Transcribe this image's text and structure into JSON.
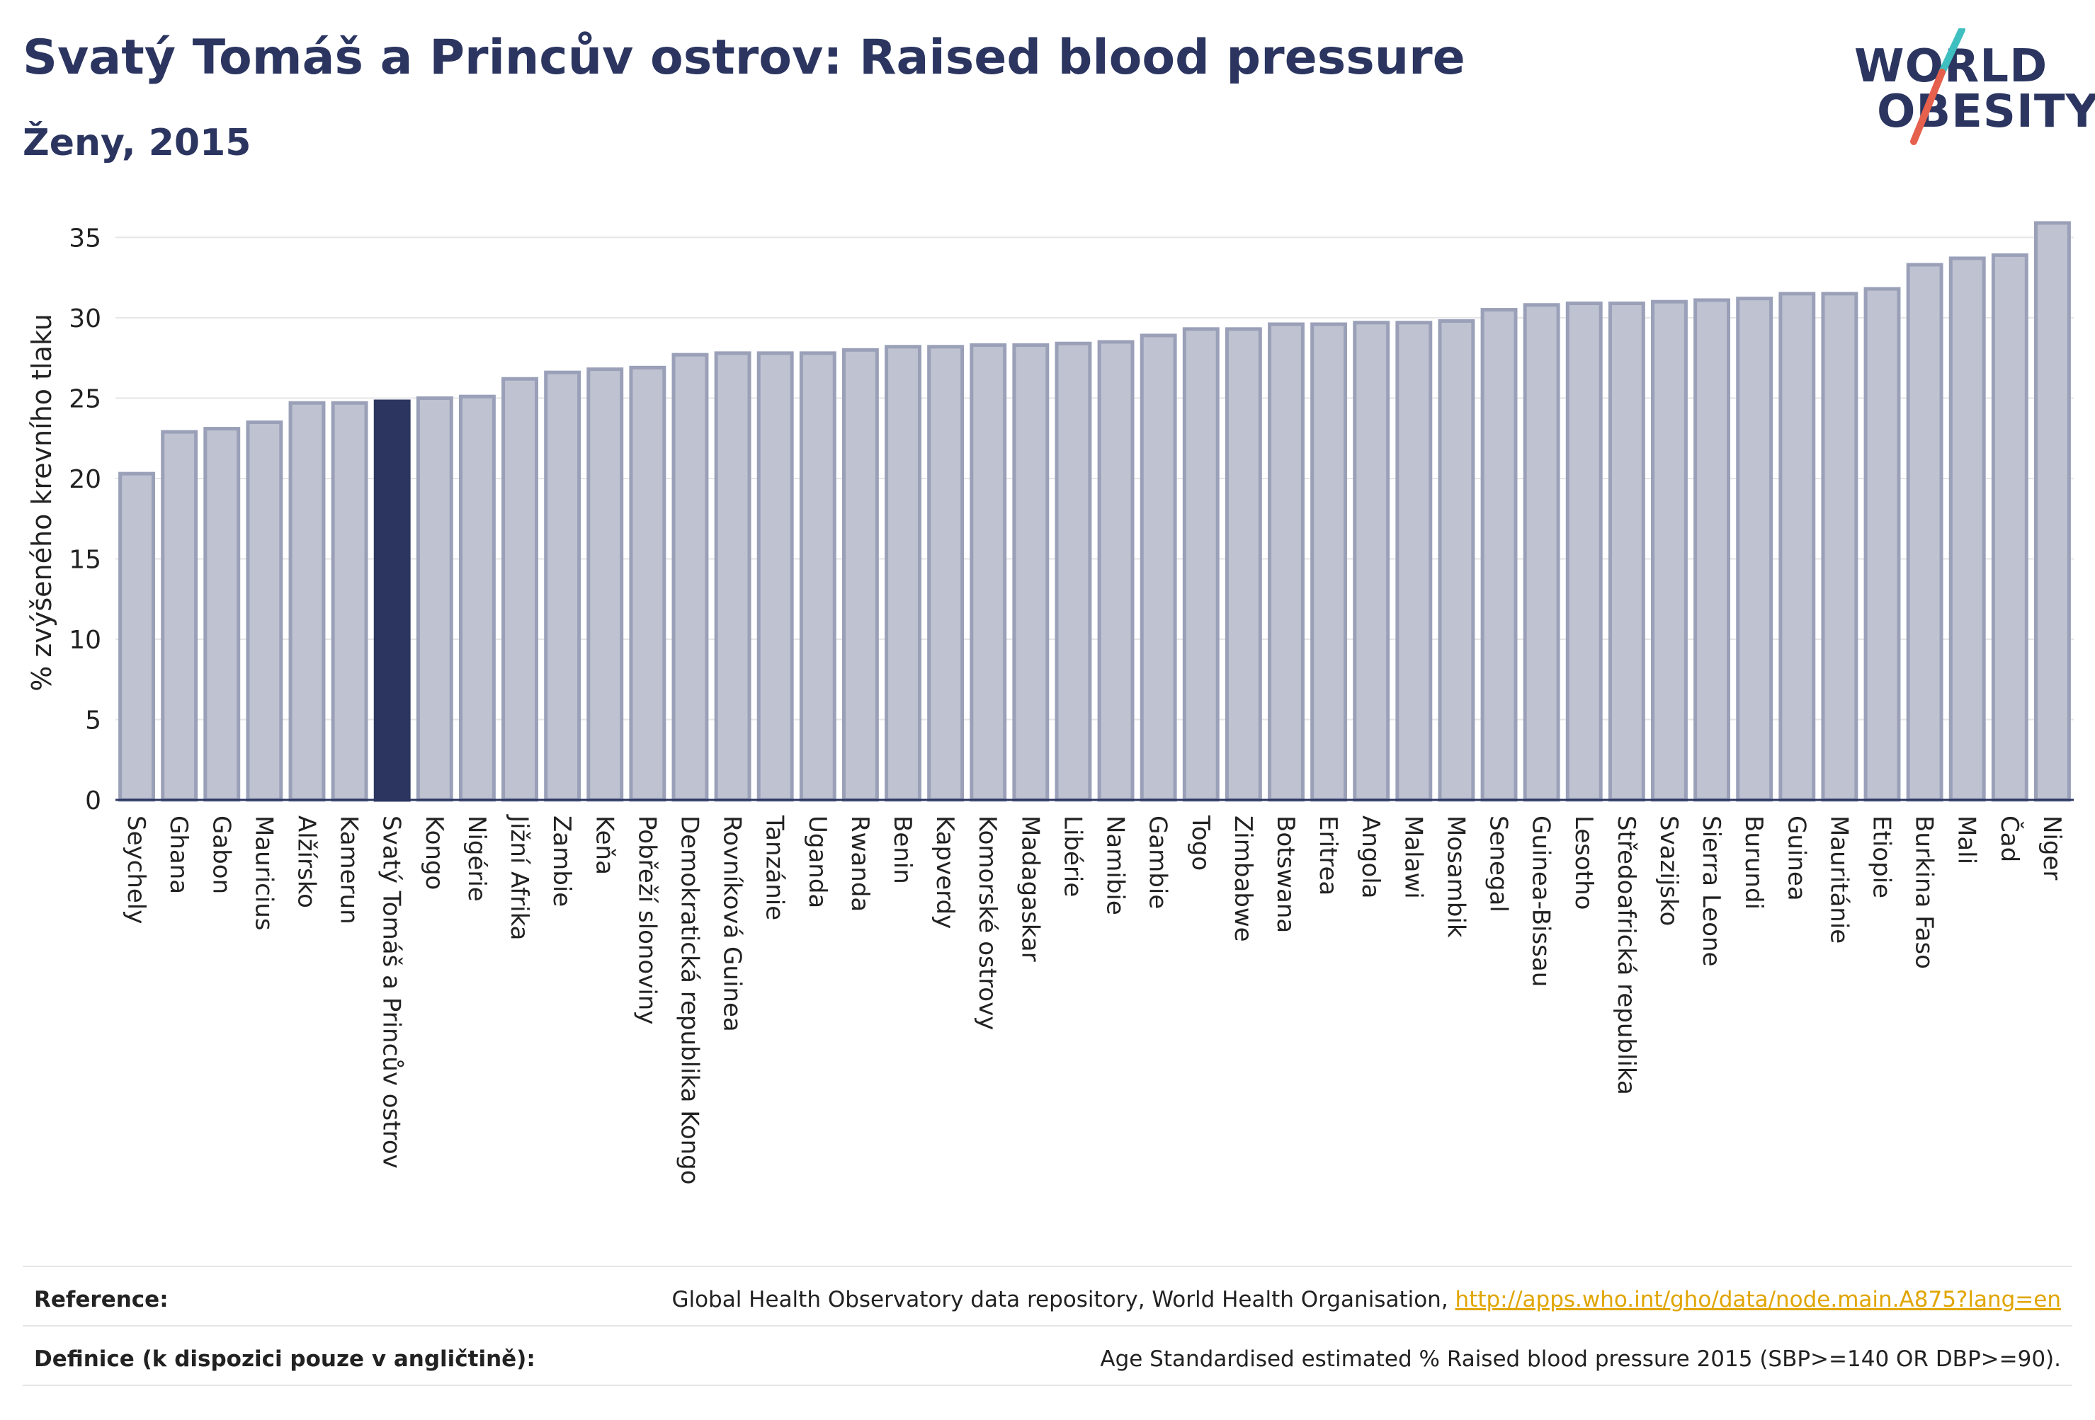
{
  "header": {
    "title": "Svatý Tomáš a Princův ostrov: Raised blood pressure",
    "subtitle": "Ženy, 2015"
  },
  "logo": {
    "line1": "WORLD",
    "line2": "OBESITY",
    "icon": "world-obesity-logo",
    "accent_teal": "#3fbfbf",
    "accent_red": "#e5604d"
  },
  "colors": {
    "bar": "#bfc2d0",
    "bar_border": "#9aa0b8",
    "highlight": "#2b3560",
    "grid": "#e6e6e6",
    "axis": "#2b3560"
  },
  "chart_data": {
    "type": "bar",
    "ylabel": "% zvýšeného krevního tlaku",
    "ylim": [
      0,
      37
    ],
    "yticks": [
      0,
      5,
      10,
      15,
      20,
      25,
      30,
      35
    ],
    "grid": true,
    "highlight": "Svatý Tomáš a Princův ostrov",
    "categories": [
      "Seychely",
      "Ghana",
      "Gabon",
      "Mauricius",
      "Alžírsko",
      "Kamerun",
      "Svatý Tomáš a Princův ostrov",
      "Kongo",
      "Nigérie",
      "Jižní Afrika",
      "Zambie",
      "Keňa",
      "Pobřeží slonoviny",
      "Demokratická republika Kongo",
      "Rovníková Guinea",
      "Tanzánie",
      "Uganda",
      "Rwanda",
      "Benin",
      "Kapverdy",
      "Komorské ostrovy",
      "Madagaskar",
      "Libérie",
      "Namibie",
      "Gambie",
      "Togo",
      "Zimbabwe",
      "Botswana",
      "Eritrea",
      "Angola",
      "Malawi",
      "Mosambik",
      "Senegal",
      "Guinea-Bissau",
      "Lesotho",
      "Středoafrická republika",
      "Svazijsko",
      "Sierra Leone",
      "Burundi",
      "Guinea",
      "Mauritánie",
      "Etiopie",
      "Burkina Faso",
      "Mali",
      "Čad",
      "Niger"
    ],
    "values": [
      20.3,
      22.9,
      23.1,
      23.5,
      24.7,
      24.7,
      24.8,
      25.0,
      25.1,
      26.2,
      26.6,
      26.8,
      26.9,
      27.7,
      27.8,
      27.8,
      27.8,
      28.0,
      28.2,
      28.2,
      28.3,
      28.3,
      28.4,
      28.5,
      28.9,
      29.3,
      29.3,
      29.6,
      29.6,
      29.7,
      29.7,
      29.8,
      30.5,
      30.8,
      30.9,
      30.9,
      31.0,
      31.1,
      31.2,
      31.5,
      31.5,
      31.8,
      33.3,
      33.7,
      33.9,
      35.9
    ]
  },
  "footer": {
    "reference_label": "Reference:",
    "reference_text": "Global Health Observatory data repository, World Health Organisation, ",
    "reference_link": "http://apps.who.int/gho/data/node.main.A875?lang=en",
    "definition_label": "Definice (k dispozici pouze v angličtině):",
    "definition_text": "Age Standardised estimated % Raised blood pressure 2015 (SBP>=140 OR DBP>=90)."
  }
}
